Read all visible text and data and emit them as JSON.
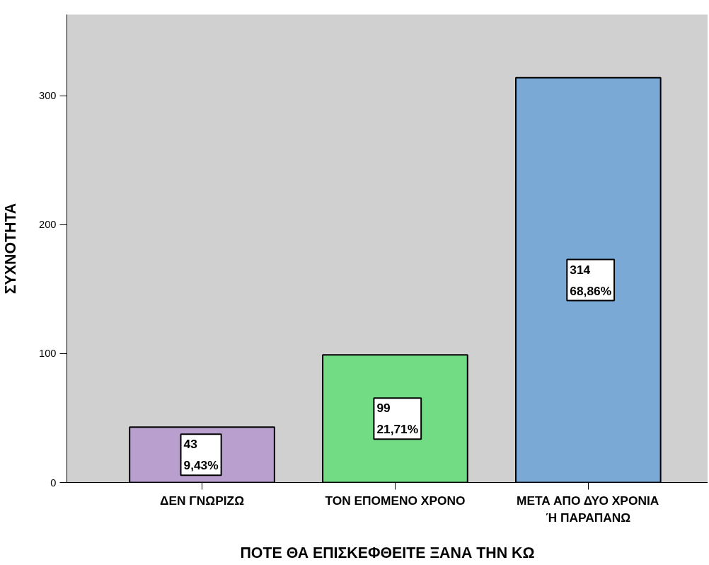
{
  "chart_data": {
    "type": "bar",
    "xlabel": "ΠΟΤΕ ΘΑ ΕΠΙΣΚΕΦΘΕΙΤΕ ΞΑΝΑ ΤΗΝ ΚΩ",
    "ylabel": "ΣΥΧΝΟΤΗΤΑ",
    "categories": [
      "ΔΕΝ ΓΝΩΡΙΖΩ",
      "ΤΟΝ ΕΠΟΜΕΝΟ ΧΡΟΝΟ",
      "ΜΕΤΑ ΑΠΟ ΔΥΟ ΧΡΟΝΙΑ Ή ΠΑΡΑΠΑΝΩ"
    ],
    "values": [
      43,
      99,
      314
    ],
    "colors": [
      "#b99fce",
      "#72dc84",
      "#7aa9d6"
    ],
    "value_labels": [
      "43\n9,43%",
      "99\n21,71%",
      "314\n68,86%"
    ],
    "ylim": [
      0,
      363
    ],
    "yticks": [
      0,
      100,
      200,
      300
    ],
    "grid": false
  }
}
